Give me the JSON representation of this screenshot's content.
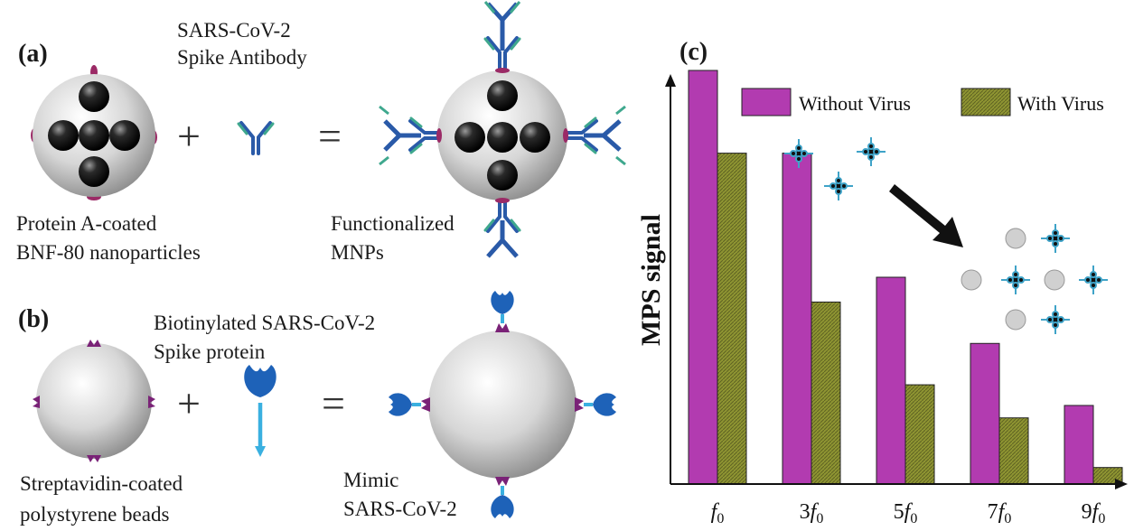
{
  "panel_a": {
    "label": "(a)",
    "antibody_caption": [
      "SARS-CoV-2",
      "Spike Antibody"
    ],
    "particle_caption": [
      "Protein A-coated",
      "BNF-80 nanoparticles"
    ],
    "product_caption": [
      "Functionalized",
      "MNPs"
    ],
    "plus": "+",
    "equals": "="
  },
  "panel_b": {
    "label": "(b)",
    "protein_caption": [
      "Biotinylated SARS-CoV-2",
      "Spike protein"
    ],
    "bead_caption": [
      "Streptavidin-coated",
      "polystyrene beads"
    ],
    "product_caption": [
      "Mimic",
      "SARS-CoV-2"
    ],
    "plus": "+",
    "equals": "="
  },
  "panel_c": {
    "label": "(c)",
    "colors": {
      "without": "#b23bb0",
      "with": "#8f9532"
    },
    "chart_data": {
      "type": "bar",
      "ylabel": "MPS signal",
      "xlabel": "",
      "categories": [
        "f0",
        "3f0",
        "5f0",
        "7f0",
        "9f0"
      ],
      "category_labels": [
        {
          "coef": "",
          "sym": "f",
          "sub": "0"
        },
        {
          "coef": "3",
          "sym": "f",
          "sub": "0"
        },
        {
          "coef": "5",
          "sym": "f",
          "sub": "0"
        },
        {
          "coef": "7",
          "sym": "f",
          "sub": "0"
        },
        {
          "coef": "9",
          "sym": "f",
          "sub": "0"
        }
      ],
      "ylim": [
        0,
        100
      ],
      "legend_position": "top-right",
      "series": [
        {
          "name": "Without Virus",
          "values": [
            100,
            80,
            50,
            34,
            19
          ]
        },
        {
          "name": "With Virus",
          "values": [
            80,
            44,
            24,
            16,
            4
          ]
        }
      ]
    }
  }
}
